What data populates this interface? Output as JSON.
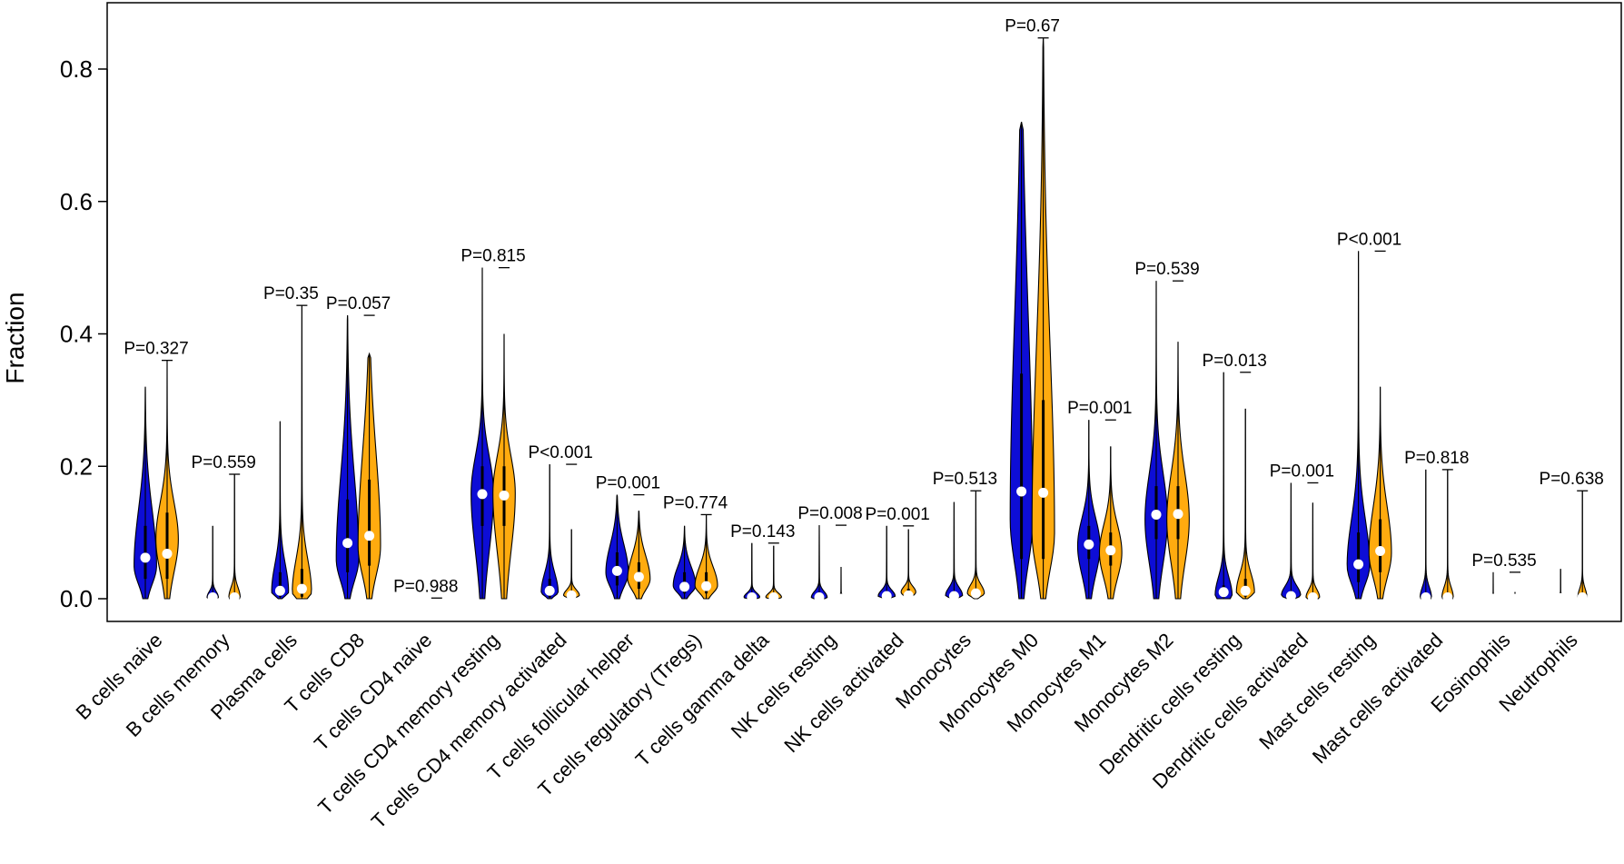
{
  "chart_data": {
    "type": "violin",
    "title": "",
    "xlabel": "",
    "ylabel": "Fraction",
    "ylim": [
      -0.012,
      0.89
    ],
    "yticks": [
      0.0,
      0.2,
      0.4,
      0.6,
      0.8
    ],
    "ytick_labels": [
      "0.0",
      "0.2",
      "0.4",
      "0.6",
      "0.8"
    ],
    "grid": false,
    "legend": "none",
    "colors": {
      "group1": "#0d0dd6",
      "group2": "#ffab0f",
      "outline": "#000000"
    },
    "categories": [
      {
        "label": "B cells naive",
        "p": "P=0.327",
        "bracket": 0.36,
        "g1": {
          "max": 0.32,
          "median": 0.062,
          "q1": 0.03,
          "q3": 0.11,
          "mode": 0.05,
          "width": 1.0
        },
        "g2": {
          "max": 0.36,
          "median": 0.068,
          "q1": 0.03,
          "q3": 0.13,
          "mode": 0.09,
          "width": 1.0
        }
      },
      {
        "label": "B cells memory",
        "p": "P=0.559",
        "bracket": 0.188,
        "g1": {
          "max": 0.11,
          "median": 0.002,
          "q1": 0,
          "q3": 0.003,
          "mode": 0.002,
          "width": 0.5
        },
        "g2": {
          "max": 0.188,
          "median": 0.002,
          "q1": 0,
          "q3": 0.003,
          "mode": 0.002,
          "width": 0.5
        }
      },
      {
        "label": "Plasma cells",
        "p": "P=0.35",
        "bracket": 0.443,
        "g1": {
          "max": 0.268,
          "median": 0.012,
          "q1": 0.003,
          "q3": 0.04,
          "mode": 0.01,
          "width": 0.75
        },
        "g2": {
          "max": 0.443,
          "median": 0.015,
          "q1": 0.003,
          "q3": 0.045,
          "mode": 0.01,
          "width": 0.85
        }
      },
      {
        "label": "T cells CD8",
        "p": "P=0.057",
        "bracket": 0.428,
        "g1": {
          "max": 0.428,
          "median": 0.084,
          "q1": 0.04,
          "q3": 0.15,
          "mode": 0.06,
          "width": 1.0
        },
        "g2": {
          "max": 0.37,
          "median": 0.095,
          "q1": 0.05,
          "q3": 0.18,
          "mode": 0.08,
          "width": 1.0
        }
      },
      {
        "label": "T cells CD4 naive",
        "p": "P=0.988",
        "bracket": 0.001,
        "g1": {
          "max": 0.002,
          "median": 0.0,
          "q1": 0,
          "q3": 0.001,
          "mode": 0.0,
          "width": 0.1
        },
        "g2": {
          "max": 0.002,
          "median": 0.0,
          "q1": 0,
          "q3": 0.001,
          "mode": 0.0,
          "width": 0.1
        }
      },
      {
        "label": "T cells CD4 memory resting",
        "p": "P=0.815",
        "bracket": 0.5,
        "g1": {
          "max": 0.5,
          "median": 0.158,
          "q1": 0.11,
          "q3": 0.2,
          "mode": 0.16,
          "width": 1.0
        },
        "g2": {
          "max": 0.4,
          "median": 0.156,
          "q1": 0.11,
          "q3": 0.2,
          "mode": 0.16,
          "width": 1.0
        }
      },
      {
        "label": "T cells CD4 memory activated",
        "p": "P<0.001",
        "bracket": 0.203,
        "g1": {
          "max": 0.203,
          "median": 0.012,
          "q1": 0.002,
          "q3": 0.03,
          "mode": 0.01,
          "width": 0.75
        },
        "g2": {
          "max": 0.105,
          "median": 0.005,
          "q1": 0.001,
          "q3": 0.01,
          "mode": 0.005,
          "width": 0.7
        }
      },
      {
        "label": "T cells follicular helper",
        "p": "P=0.001",
        "bracket": 0.157,
        "g1": {
          "max": 0.157,
          "median": 0.042,
          "q1": 0.02,
          "q3": 0.07,
          "mode": 0.04,
          "width": 1.0
        },
        "g2": {
          "max": 0.133,
          "median": 0.033,
          "q1": 0.015,
          "q3": 0.055,
          "mode": 0.03,
          "width": 1.0
        }
      },
      {
        "label": "T cells regulatory (Tregs)",
        "p": "P=0.774",
        "bracket": 0.127,
        "g1": {
          "max": 0.11,
          "median": 0.018,
          "q1": 0.008,
          "q3": 0.04,
          "mode": 0.02,
          "width": 1.0
        },
        "g2": {
          "max": 0.127,
          "median": 0.019,
          "q1": 0.008,
          "q3": 0.04,
          "mode": 0.02,
          "width": 1.0
        }
      },
      {
        "label": "T cells gamma delta",
        "p": "P=0.143",
        "bracket": 0.084,
        "g1": {
          "max": 0.084,
          "median": 0.002,
          "q1": 0,
          "q3": 0.004,
          "mode": 0.002,
          "width": 0.7
        },
        "g2": {
          "max": 0.08,
          "median": 0.002,
          "q1": 0,
          "q3": 0.004,
          "mode": 0.002,
          "width": 0.7
        }
      },
      {
        "label": "NK cells resting",
        "p": "P=0.008",
        "bracket": 0.111,
        "g1": {
          "max": 0.111,
          "median": 0.002,
          "q1": 0,
          "q3": 0.004,
          "mode": 0.002,
          "width": 0.7
        },
        "g2": {
          "max": 0.048,
          "median": 0.0,
          "q1": 0,
          "q3": 0.001,
          "mode": 0.0,
          "width": 0.3
        }
      },
      {
        "label": "NK cells activated",
        "p": "P=0.001",
        "bracket": 0.11,
        "g1": {
          "max": 0.11,
          "median": 0.004,
          "q1": 0.001,
          "q3": 0.008,
          "mode": 0.004,
          "width": 0.75
        },
        "g2": {
          "max": 0.105,
          "median": 0.005,
          "q1": 0.001,
          "q3": 0.015,
          "mode": 0.01,
          "width": 0.65
        }
      },
      {
        "label": "Monocytes",
        "p": "P=0.513",
        "bracket": 0.163,
        "g1": {
          "max": 0.146,
          "median": 0.004,
          "q1": 0.001,
          "q3": 0.008,
          "mode": 0.005,
          "width": 0.75
        },
        "g2": {
          "max": 0.163,
          "median": 0.008,
          "q1": 0.002,
          "q3": 0.015,
          "mode": 0.008,
          "width": 0.75
        }
      },
      {
        "label": "Monocytes M0",
        "p": "P=0.67",
        "bracket": 0.847,
        "g1": {
          "max": 0.72,
          "median": 0.162,
          "q1": 0.06,
          "q3": 0.34,
          "mode": 0.12,
          "width": 1.0
        },
        "g2": {
          "max": 0.847,
          "median": 0.16,
          "q1": 0.06,
          "q3": 0.3,
          "mode": 0.1,
          "width": 1.0
        }
      },
      {
        "label": "Monocytes M1",
        "p": "P=0.001",
        "bracket": 0.27,
        "g1": {
          "max": 0.27,
          "median": 0.082,
          "q1": 0.06,
          "q3": 0.11,
          "mode": 0.08,
          "width": 1.0
        },
        "g2": {
          "max": 0.23,
          "median": 0.073,
          "q1": 0.05,
          "q3": 0.1,
          "mode": 0.07,
          "width": 1.0
        }
      },
      {
        "label": "Monocytes M2",
        "p": "P=0.539",
        "bracket": 0.48,
        "g1": {
          "max": 0.48,
          "median": 0.127,
          "q1": 0.09,
          "q3": 0.17,
          "mode": 0.12,
          "width": 1.0
        },
        "g2": {
          "max": 0.388,
          "median": 0.128,
          "q1": 0.09,
          "q3": 0.17,
          "mode": 0.12,
          "width": 1.0
        }
      },
      {
        "label": "Dendritic cells resting",
        "p": "P=0.013",
        "bracket": 0.342,
        "g1": {
          "max": 0.342,
          "median": 0.01,
          "q1": 0.002,
          "q3": 0.02,
          "mode": 0.005,
          "width": 0.75
        },
        "g2": {
          "max": 0.287,
          "median": 0.012,
          "q1": 0.003,
          "q3": 0.03,
          "mode": 0.01,
          "width": 0.8
        }
      },
      {
        "label": "Dendritic cells activated",
        "p": "P=0.001",
        "bracket": 0.175,
        "g1": {
          "max": 0.175,
          "median": 0.004,
          "q1": 0.001,
          "q3": 0.01,
          "mode": 0.005,
          "width": 0.85
        },
        "g2": {
          "max": 0.145,
          "median": 0.002,
          "q1": 0,
          "q3": 0.005,
          "mode": 0.002,
          "width": 0.6
        }
      },
      {
        "label": "Mast cells resting",
        "p": "P<0.001",
        "bracket": 0.525,
        "g1": {
          "max": 0.525,
          "median": 0.052,
          "q1": 0.025,
          "q3": 0.1,
          "mode": 0.05,
          "width": 1.0
        },
        "g2": {
          "max": 0.32,
          "median": 0.072,
          "q1": 0.04,
          "q3": 0.12,
          "mode": 0.07,
          "width": 1.0
        }
      },
      {
        "label": "Mast cells activated",
        "p": "P=0.818",
        "bracket": 0.195,
        "g1": {
          "max": 0.195,
          "median": 0.002,
          "q1": 0,
          "q3": 0.003,
          "mode": 0.002,
          "width": 0.5
        },
        "g2": {
          "max": 0.195,
          "median": 0.002,
          "q1": 0,
          "q3": 0.003,
          "mode": 0.002,
          "width": 0.5
        }
      },
      {
        "label": "Eosinophils",
        "p": "P=0.535",
        "bracket": 0.04,
        "g1": {
          "max": 0.04,
          "median": 0.0,
          "q1": 0,
          "q3": 0.001,
          "mode": 0.0,
          "width": 0.25
        },
        "g2": {
          "max": 0.01,
          "median": 0.0,
          "q1": 0,
          "q3": 0.001,
          "mode": 0.0,
          "width": 0.15
        }
      },
      {
        "label": "Neutrophils",
        "p": "P=0.638",
        "bracket": 0.163,
        "g1": {
          "max": 0.045,
          "median": 0.001,
          "q1": 0,
          "q3": 0.002,
          "mode": 0.001,
          "width": 0.3
        },
        "g2": {
          "max": 0.163,
          "median": 0.002,
          "q1": 0,
          "q3": 0.004,
          "mode": 0.002,
          "width": 0.4
        }
      }
    ]
  }
}
